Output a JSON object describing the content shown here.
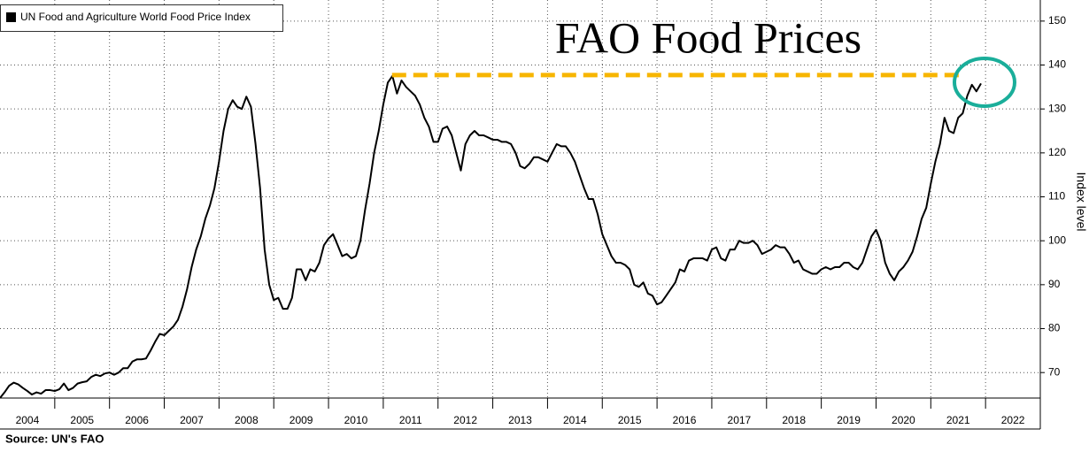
{
  "chart_data": {
    "type": "line",
    "title": "FAO Food Prices",
    "y_label": "Index level",
    "source": "Source: UN's FAO",
    "xlim": [
      2004,
      2023
    ],
    "ylim": [
      64.2,
      154.8
    ],
    "xticks": [
      2004,
      2005,
      2006,
      2007,
      2008,
      2009,
      2010,
      2011,
      2012,
      2013,
      2014,
      2015,
      2016,
      2017,
      2018,
      2019,
      2020,
      2021,
      2022
    ],
    "yticks": [
      70,
      80,
      90,
      100,
      110,
      120,
      130,
      140,
      150
    ],
    "grid": true,
    "legend": "top-left",
    "series": [
      {
        "name": "UN Food and Agriculture World Food Price Index",
        "color": "#000000",
        "x": [
          2004,
          2004.083,
          2004.167,
          2004.25,
          2004.333,
          2004.417,
          2004.5,
          2004.583,
          2004.667,
          2004.75,
          2004.833,
          2004.917,
          2005,
          2005.083,
          2005.167,
          2005.25,
          2005.333,
          2005.417,
          2005.5,
          2005.583,
          2005.667,
          2005.75,
          2005.833,
          2005.917,
          2006,
          2006.083,
          2006.167,
          2006.25,
          2006.333,
          2006.417,
          2006.5,
          2006.583,
          2006.667,
          2006.75,
          2006.833,
          2006.917,
          2007,
          2007.083,
          2007.167,
          2007.25,
          2007.333,
          2007.417,
          2007.5,
          2007.583,
          2007.667,
          2007.75,
          2007.833,
          2007.917,
          2008,
          2008.083,
          2008.167,
          2008.25,
          2008.333,
          2008.417,
          2008.5,
          2008.583,
          2008.667,
          2008.75,
          2008.833,
          2008.917,
          2009,
          2009.083,
          2009.167,
          2009.25,
          2009.333,
          2009.417,
          2009.5,
          2009.583,
          2009.667,
          2009.75,
          2009.833,
          2009.917,
          2010,
          2010.083,
          2010.167,
          2010.25,
          2010.333,
          2010.417,
          2010.5,
          2010.583,
          2010.667,
          2010.75,
          2010.833,
          2010.917,
          2011,
          2011.083,
          2011.167,
          2011.25,
          2011.333,
          2011.417,
          2011.5,
          2011.583,
          2011.667,
          2011.75,
          2011.833,
          2011.917,
          2012,
          2012.083,
          2012.167,
          2012.25,
          2012.333,
          2012.417,
          2012.5,
          2012.583,
          2012.667,
          2012.75,
          2012.833,
          2012.917,
          2013,
          2013.083,
          2013.167,
          2013.25,
          2013.333,
          2013.417,
          2013.5,
          2013.583,
          2013.667,
          2013.75,
          2013.833,
          2013.917,
          2014,
          2014.083,
          2014.167,
          2014.25,
          2014.333,
          2014.417,
          2014.5,
          2014.583,
          2014.667,
          2014.75,
          2014.833,
          2014.917,
          2015,
          2015.083,
          2015.167,
          2015.25,
          2015.333,
          2015.417,
          2015.5,
          2015.583,
          2015.667,
          2015.75,
          2015.833,
          2015.917,
          2016,
          2016.083,
          2016.167,
          2016.25,
          2016.333,
          2016.417,
          2016.5,
          2016.583,
          2016.667,
          2016.75,
          2016.833,
          2016.917,
          2017,
          2017.083,
          2017.167,
          2017.25,
          2017.333,
          2017.417,
          2017.5,
          2017.583,
          2017.667,
          2017.75,
          2017.833,
          2017.917,
          2018,
          2018.083,
          2018.167,
          2018.25,
          2018.333,
          2018.417,
          2018.5,
          2018.583,
          2018.667,
          2018.75,
          2018.833,
          2018.917,
          2019,
          2019.083,
          2019.167,
          2019.25,
          2019.333,
          2019.417,
          2019.5,
          2019.583,
          2019.667,
          2019.75,
          2019.833,
          2019.917,
          2020,
          2020.083,
          2020.167,
          2020.25,
          2020.333,
          2020.417,
          2020.5,
          2020.583,
          2020.667,
          2020.75,
          2020.833,
          2020.917,
          2021,
          2021.083,
          2021.167,
          2021.25,
          2021.333,
          2021.417,
          2021.5,
          2021.583,
          2021.667,
          2021.75,
          2021.833,
          2021.917
        ],
        "values": [
          64.2,
          65.5,
          67,
          67.7,
          67.3,
          66.5,
          65.8,
          65,
          65.5,
          65.2,
          66,
          66,
          65.8,
          66.2,
          67.5,
          66,
          66.5,
          67.5,
          67.8,
          68,
          69,
          69.5,
          69.2,
          69.8,
          70,
          69.5,
          70,
          71,
          71,
          72.5,
          73,
          73,
          73.2,
          75,
          77,
          78.8,
          78.5,
          79.5,
          80.5,
          82,
          85,
          89,
          94,
          98,
          101,
          105,
          108,
          112,
          118,
          125,
          130,
          132,
          130.5,
          130,
          132.8,
          130.5,
          122,
          112,
          98,
          90,
          86.5,
          87,
          84.5,
          84.5,
          87,
          93.5,
          93.5,
          91,
          93.5,
          93,
          95,
          99,
          100.5,
          101.5,
          99,
          96.5,
          97,
          96,
          96.5,
          100,
          107,
          113,
          120,
          125,
          131,
          136,
          137.5,
          133.5,
          136.5,
          135,
          134,
          133,
          131,
          128,
          126,
          122.5,
          122.5,
          125.5,
          126,
          124,
          120,
          116,
          122,
          124,
          125,
          124,
          124,
          123.5,
          123,
          123,
          122.5,
          122.5,
          122,
          120,
          117,
          116.5,
          117.5,
          119,
          119,
          118.5,
          118,
          120,
          122,
          121.5,
          121.5,
          120,
          118,
          115,
          112,
          109.5,
          109.5,
          106,
          101.5,
          99,
          96.5,
          95,
          95,
          94.5,
          93.5,
          90,
          89.5,
          90.5,
          88,
          87.5,
          85.5,
          86,
          87.5,
          89,
          90.5,
          93.5,
          93,
          95.5,
          96,
          96,
          96,
          95.5,
          98,
          98.5,
          96,
          95.5,
          98,
          98,
          100,
          99.5,
          99.5,
          100,
          99,
          97,
          97.5,
          98,
          99,
          98.5,
          98.5,
          97,
          95,
          95.5,
          93.5,
          93,
          92.5,
          92.5,
          93.5,
          94,
          93.5,
          94,
          94,
          95,
          95,
          94,
          93.5,
          95,
          98,
          101,
          102.5,
          100,
          95,
          92.5,
          91,
          93,
          94,
          95.5,
          97.5,
          101,
          105,
          107.5,
          113,
          118,
          122,
          128,
          125,
          124.5,
          128,
          129,
          133,
          135.5,
          134,
          135.8
        ]
      }
    ],
    "reference_line": {
      "value": 137.7,
      "x": [
        2011.16,
        2021.63
      ],
      "color": "#f7b500"
    }
  }
}
